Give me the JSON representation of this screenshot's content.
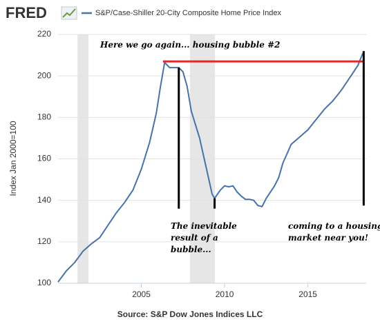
{
  "chart_data": {
    "type": "line",
    "brand": "FRED",
    "y_axis_label": "Index Jan 2000=100",
    "source": "Source: S&P Dow Jones Indices LLC",
    "x": [
      2000.0,
      2000.5,
      2001.0,
      2001.5,
      2002.0,
      2002.5,
      2003.0,
      2003.5,
      2004.0,
      2004.5,
      2005.0,
      2005.5,
      2005.9,
      2006.15,
      2006.4,
      2006.7,
      2007.0,
      2007.25,
      2007.5,
      2007.75,
      2008.0,
      2008.5,
      2009.0,
      2009.25,
      2009.4,
      2009.75,
      2010.0,
      2010.25,
      2010.5,
      2010.75,
      2011.0,
      2011.25,
      2011.5,
      2011.75,
      2012.0,
      2012.25,
      2012.5,
      2013.0,
      2013.25,
      2013.5,
      2014.0,
      2014.5,
      2015.0,
      2015.5,
      2016.0,
      2016.5,
      2017.0,
      2017.5,
      2018.0,
      2018.3
    ],
    "series": [
      {
        "name": "S&P/Case-Shiller 20-City Composite Home Price Index",
        "color": "#4572a7",
        "values": [
          100.6,
          106,
          110,
          115.5,
          119,
          122,
          128,
          134,
          139,
          145,
          155,
          168,
          182,
          195,
          206.5,
          204,
          204,
          204,
          202,
          195,
          183,
          170,
          152,
          143,
          141,
          145,
          147,
          146.5,
          147,
          144,
          142,
          140.5,
          140.5,
          140,
          137.5,
          137,
          141,
          147,
          151,
          158,
          167,
          170.5,
          174,
          179,
          184,
          188,
          193,
          199,
          205,
          211
        ]
      }
    ],
    "xlim": [
      2000,
      2018.5
    ],
    "ylim": [
      100,
      220
    ],
    "xticks": [
      2005,
      2010,
      2015
    ],
    "yticks": [
      100,
      120,
      140,
      160,
      180,
      200,
      220
    ],
    "grid": true,
    "recessions": [
      [
        2001.17,
        2001.83
      ],
      [
        2007.92,
        2009.42
      ]
    ],
    "annotation_lines": [
      {
        "x": [
          2006.3,
          2018.35
        ],
        "y": [
          207,
          207
        ],
        "color": "#e3262b"
      },
      {
        "x": [
          2007.25,
          2007.25
        ],
        "y": [
          204,
          136
        ],
        "color": "#000000"
      },
      {
        "x": [
          2009.4,
          2009.4
        ],
        "y": [
          141,
          136
        ],
        "color": "#000000"
      },
      {
        "x": [
          2018.35,
          2018.35
        ],
        "y": [
          212,
          137.5
        ],
        "color": "#000000"
      }
    ],
    "annotations": [
      {
        "lines": [
          "Here we go again... housing bubble #2"
        ]
      },
      {
        "lines": [
          "The inevitable",
          "result of a",
          "bubble..."
        ]
      },
      {
        "lines": [
          "coming to a housing",
          "market near you!"
        ]
      }
    ]
  }
}
